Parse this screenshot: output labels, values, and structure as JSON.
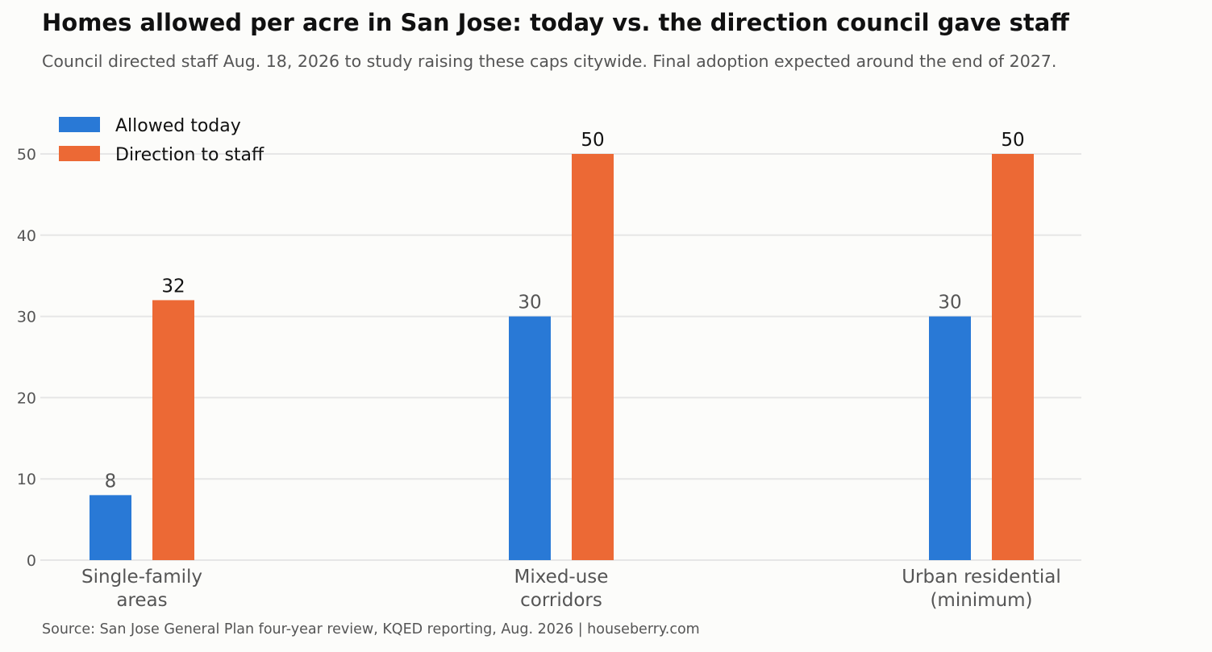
{
  "colors": {
    "allowed_today": "#2979d6",
    "direction_to_staff": "#ec6935",
    "gridline": "#e6e6e6",
    "axis_text": "#555555",
    "title_text": "#111111",
    "background": "#fcfcfa"
  },
  "chart_data": {
    "type": "bar",
    "title": "Homes allowed per acre in San Jose: today vs. the direction council gave staff",
    "subtitle": "Council directed staff Aug. 18, 2026 to study raising these caps citywide. Final adoption expected around the end of 2027.",
    "source": "Source: San Jose General Plan four-year review, KQED reporting, Aug. 2026 | houseberry.com",
    "categories": [
      [
        "Single-family",
        "areas"
      ],
      [
        "Mixed-use",
        "corridors"
      ],
      [
        "Urban residential",
        "(minimum)"
      ]
    ],
    "series": [
      {
        "name": "Allowed today",
        "values": [
          8,
          30,
          30
        ],
        "color": "#2979d6"
      },
      {
        "name": "Direction to staff",
        "values": [
          32,
          50,
          50
        ],
        "color": "#ec6935"
      }
    ],
    "ylim": [
      0,
      55
    ],
    "yticks": [
      0,
      10,
      20,
      30,
      40,
      50
    ],
    "xlabel": "",
    "ylabel": "",
    "grid": true,
    "legend": "top-left"
  }
}
